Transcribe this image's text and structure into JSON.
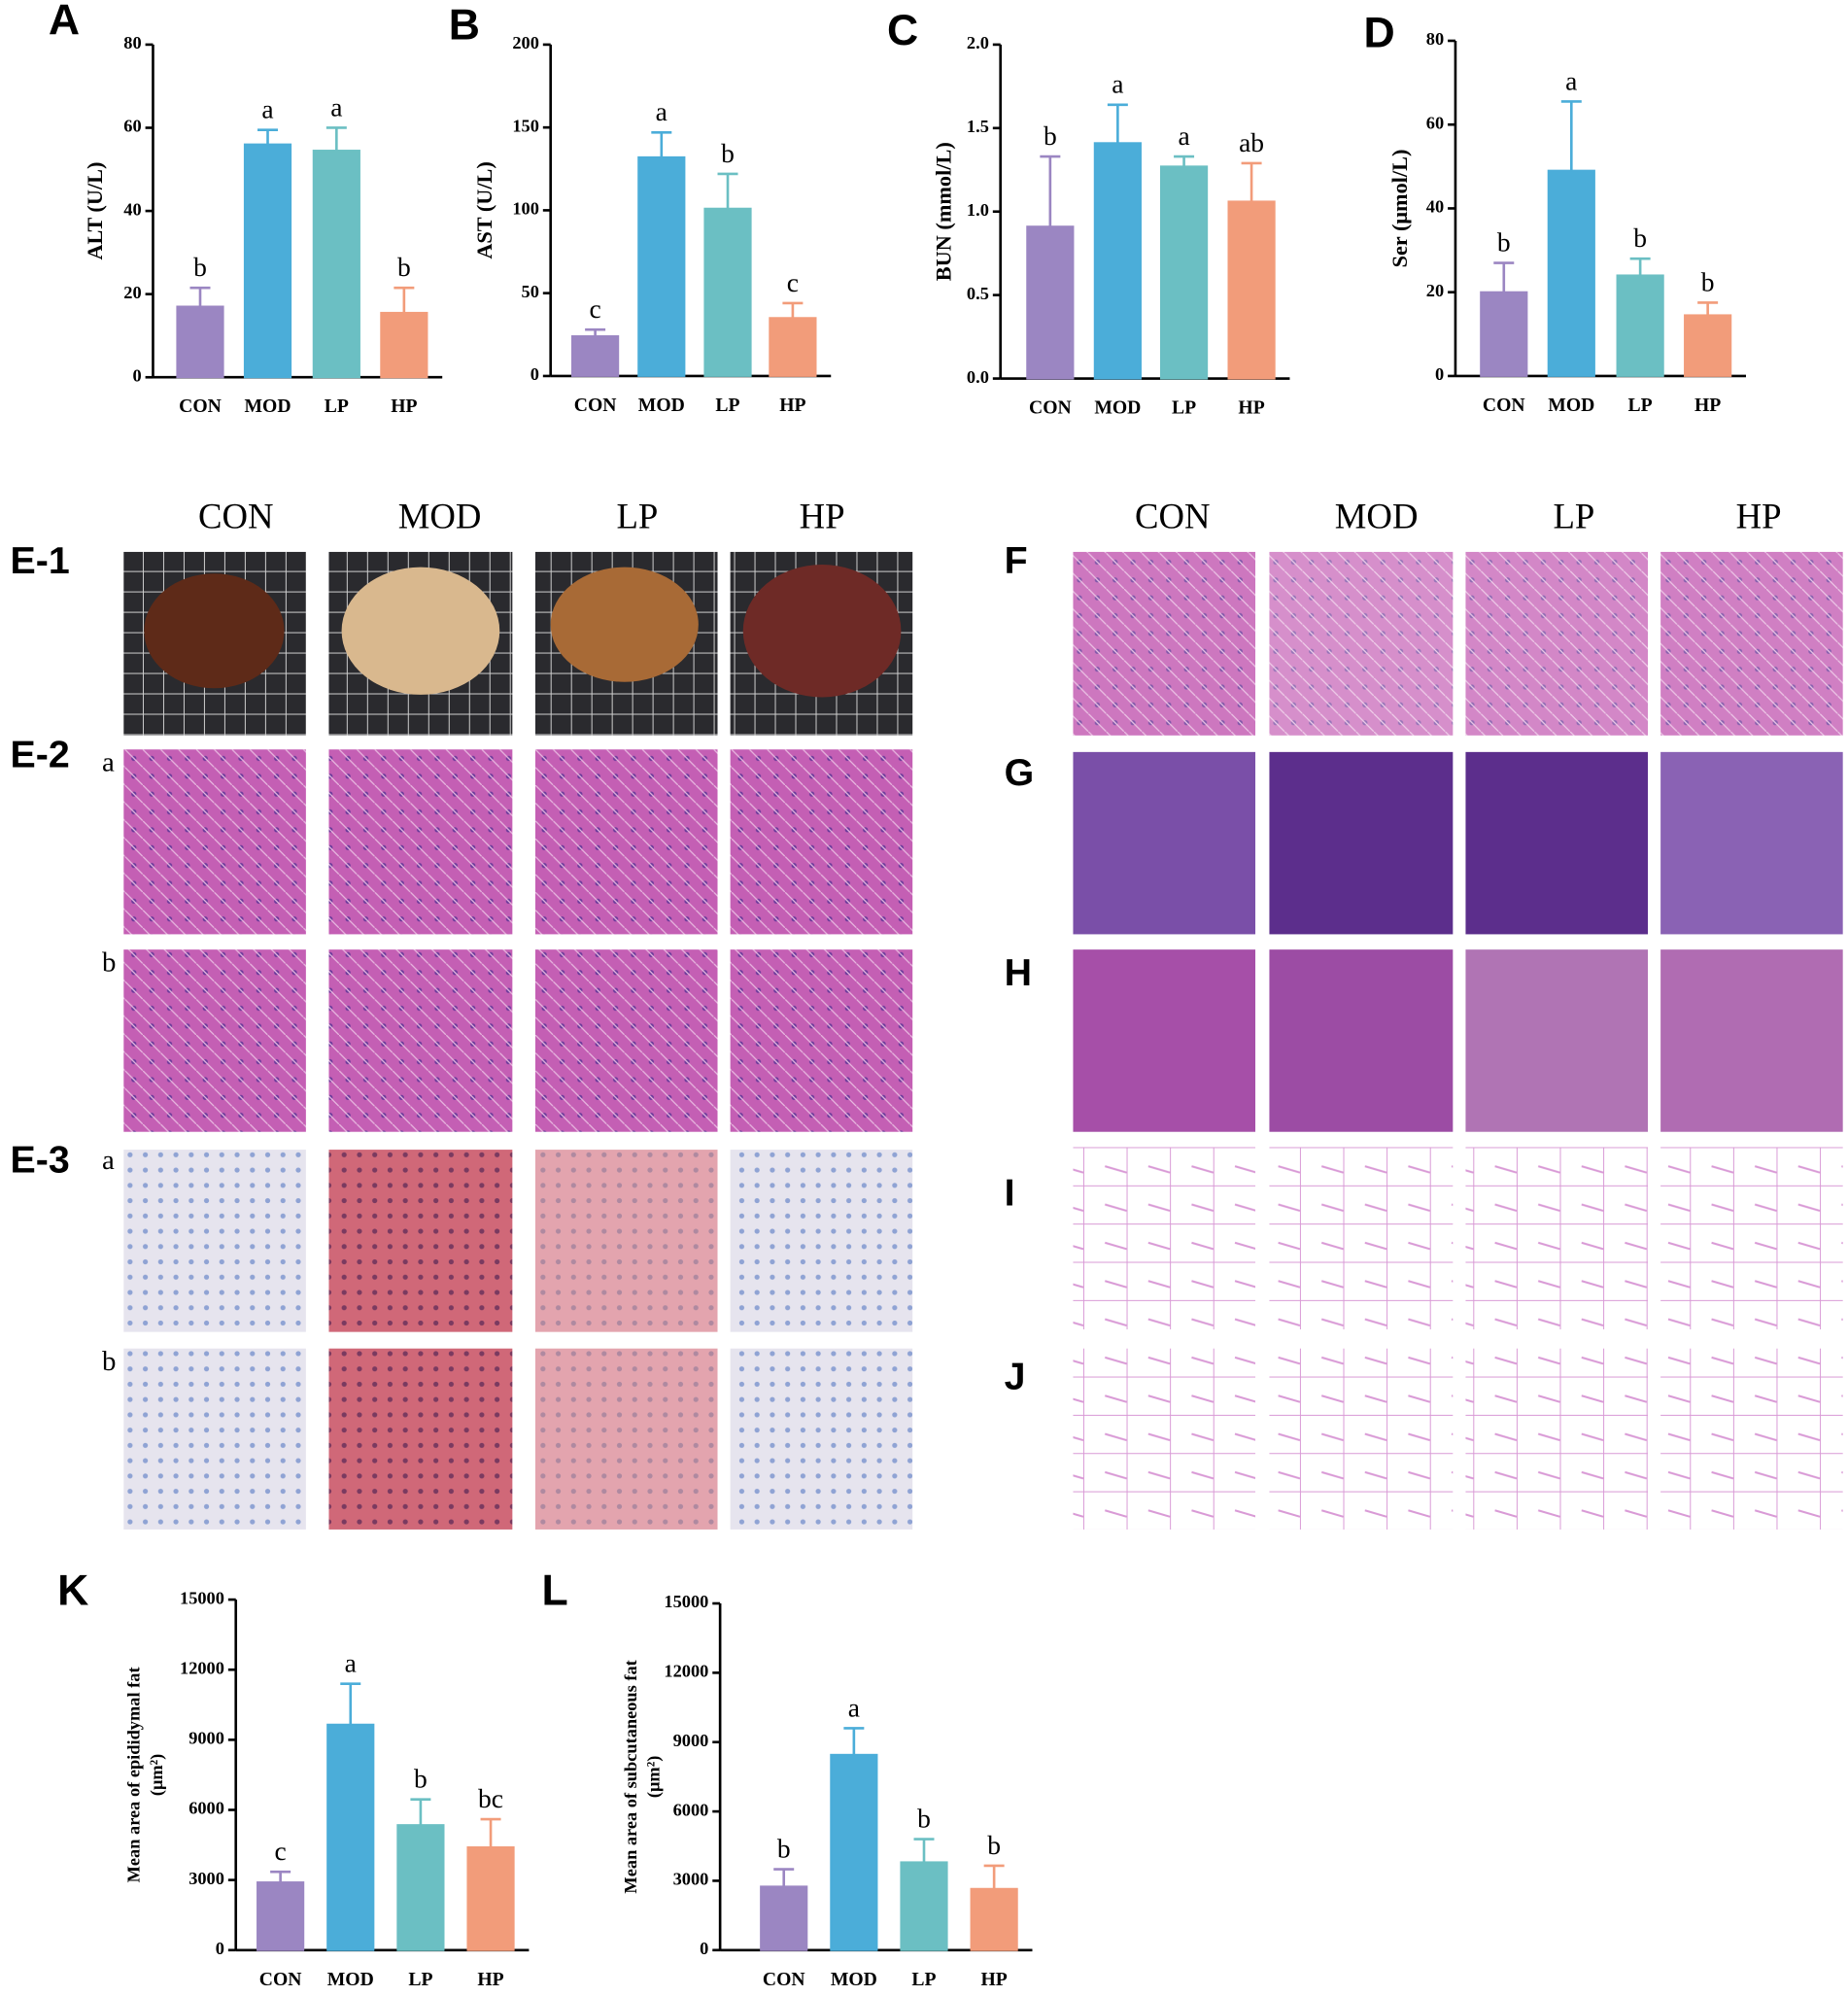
{
  "chart_data": [
    {
      "type": "bar",
      "panel": "A",
      "ylabel": "ALT (U/L)",
      "categories": [
        "CON",
        "MOD",
        "LP",
        "HP"
      ],
      "values": [
        17,
        56,
        54.5,
        15.5
      ],
      "errors": [
        4.5,
        3.5,
        5.5,
        6
      ],
      "annotations": [
        "b",
        "a",
        "a",
        "b"
      ],
      "colors": [
        "#9b86c2",
        "#4badd9",
        "#6bbfc3",
        "#f29c7a"
      ],
      "ylim": [
        0,
        80
      ],
      "yticks": [
        0,
        20,
        40,
        60,
        80
      ]
    },
    {
      "type": "bar",
      "panel": "B",
      "ylabel": "AST (U/L)",
      "categories": [
        "CON",
        "MOD",
        "LP",
        "HP"
      ],
      "values": [
        24,
        132,
        101,
        35
      ],
      "errors": [
        4,
        15,
        21,
        9
      ],
      "annotations": [
        "c",
        "a",
        "b",
        "c"
      ],
      "colors": [
        "#9b86c2",
        "#4badd9",
        "#6bbfc3",
        "#f29c7a"
      ],
      "ylim": [
        0,
        200
      ],
      "yticks": [
        0,
        50,
        100,
        150,
        200
      ]
    },
    {
      "type": "bar",
      "panel": "C",
      "ylabel": "BUN (mmol/L)",
      "categories": [
        "CON",
        "MOD",
        "LP",
        "HP"
      ],
      "values": [
        0.91,
        1.41,
        1.27,
        1.06
      ],
      "errors": [
        0.42,
        0.23,
        0.06,
        0.23
      ],
      "annotations": [
        "b",
        "a",
        "a",
        "ab"
      ],
      "colors": [
        "#9b86c2",
        "#4badd9",
        "#6bbfc3",
        "#f29c7a"
      ],
      "ylim": [
        0,
        2.0
      ],
      "yticks": [
        {
          "value": 0,
          "label": "0.0"
        },
        0.5,
        {
          "value": 1,
          "label": "1.0"
        },
        1.5,
        {
          "value": 2,
          "label": "2.0"
        }
      ]
    },
    {
      "type": "bar",
      "panel": "D",
      "ylabel": "Ser (μmol/L)",
      "categories": [
        "CON",
        "MOD",
        "LP",
        "HP"
      ],
      "values": [
        20,
        49,
        24,
        14.5
      ],
      "errors": [
        7,
        16.5,
        4,
        3
      ],
      "annotations": [
        "b",
        "a",
        "b",
        "b"
      ],
      "colors": [
        "#9b86c2",
        "#4badd9",
        "#6bbfc3",
        "#f29c7a"
      ],
      "ylim": [
        0,
        80
      ],
      "yticks": [
        0,
        20,
        40,
        60,
        80
      ]
    },
    {
      "type": "bar",
      "panel": "K",
      "ylabel": [
        "Mean area of epididymal fat",
        "(μm²)"
      ],
      "categories": [
        "CON",
        "MOD",
        "LP",
        "HP"
      ],
      "values": [
        2900,
        9650,
        5350,
        4400
      ],
      "errors": [
        450,
        1750,
        1100,
        1200
      ],
      "annotations": [
        "c",
        "a",
        "b",
        "bc"
      ],
      "colors": [
        "#9b86c2",
        "#4badd9",
        "#6bbfc3",
        "#f29c7a"
      ],
      "ylim": [
        0,
        15000
      ],
      "yticks": [
        0,
        3000,
        6000,
        9000,
        12000,
        15000
      ]
    },
    {
      "type": "bar",
      "panel": "L",
      "ylabel": [
        "Mean area of subcutaneous fat",
        "(μm²)"
      ],
      "categories": [
        "CON",
        "MOD",
        "LP",
        "HP"
      ],
      "values": [
        2750,
        8450,
        3800,
        2650
      ],
      "errors": [
        750,
        1150,
        1000,
        1000
      ],
      "annotations": [
        "b",
        "a",
        "b",
        "b"
      ],
      "colors": [
        "#9b86c2",
        "#4badd9",
        "#6bbfc3",
        "#f29c7a"
      ],
      "ylim": [
        0,
        15000
      ],
      "yticks": [
        0,
        3000,
        6000,
        9000,
        12000,
        15000
      ]
    }
  ],
  "panels": {
    "E": {
      "columns": [
        "CON",
        "MOD",
        "LP",
        "HP"
      ],
      "rows": [
        "E-1",
        "E-2",
        "E-3"
      ],
      "subrows": [
        "a",
        "b",
        "a",
        "b"
      ]
    },
    "F": {
      "columns": [
        "CON",
        "MOD",
        "LP",
        "HP"
      ],
      "rows": [
        "F",
        "G",
        "H",
        "I",
        "J"
      ]
    }
  }
}
